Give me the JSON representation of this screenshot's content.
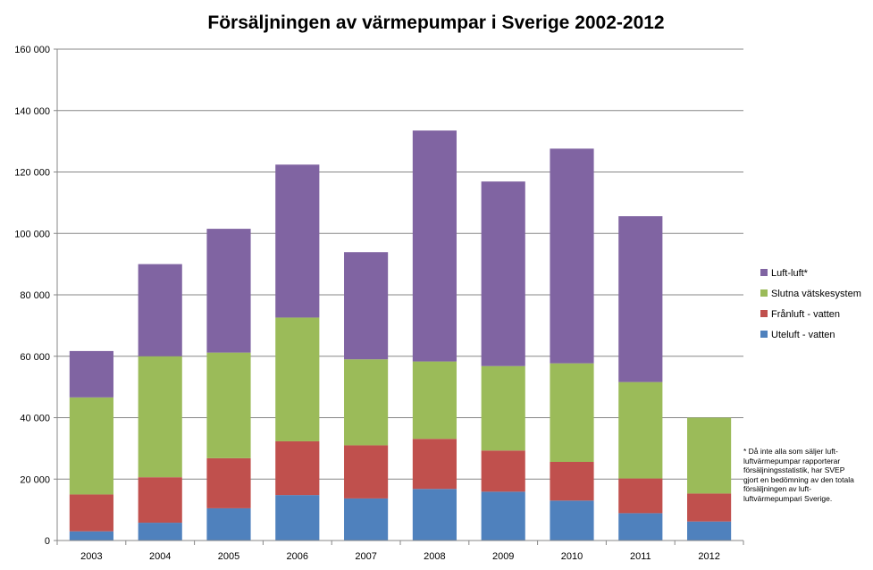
{
  "chart_data": {
    "type": "bar",
    "stacked": true,
    "title": "Försäljningen av värmepumpar i Sverige 2002-2012",
    "xlabel": "",
    "ylabel": "",
    "ylim": [
      0,
      160000
    ],
    "y_ticks": [
      "0",
      "20 000",
      "40 000",
      "60 000",
      "80 000",
      "100 000",
      "120 000",
      "140 000",
      "160 000"
    ],
    "y_tick_values": [
      0,
      20000,
      40000,
      60000,
      80000,
      100000,
      120000,
      140000,
      160000
    ],
    "grid": true,
    "legend_position": "right",
    "categories": [
      "2003",
      "2004",
      "2005",
      "2006",
      "2007",
      "2008",
      "2009",
      "2010",
      "2011",
      "2012"
    ],
    "series": [
      {
        "name": "Uteluft - vatten",
        "color": "#4F81BD",
        "values": [
          3000,
          5800,
          10500,
          14800,
          13700,
          16800,
          15900,
          13000,
          8900,
          6200
        ]
      },
      {
        "name": "Frånluft - vatten",
        "color": "#C0504D",
        "values": [
          12000,
          14800,
          16300,
          17500,
          17300,
          16300,
          13400,
          12600,
          11300,
          9100
        ]
      },
      {
        "name": "Slutna vätskesystem",
        "color": "#9BBB59",
        "values": [
          31600,
          39400,
          34400,
          40300,
          28000,
          25200,
          27500,
          32100,
          31400,
          24700
        ]
      },
      {
        "name": "Luft-luft*",
        "color": "#8064A2",
        "values": [
          15100,
          30000,
          40300,
          49800,
          34900,
          75200,
          60100,
          69900,
          54000,
          0
        ]
      }
    ]
  },
  "footnote": "* Då inte alla som säljer luft-luftvärmepumpar rapporterar försäljningsstatistik, har SVEP gjort en bedömning av den totala försäljningen av luft-luftvärmepumpari Sverige."
}
